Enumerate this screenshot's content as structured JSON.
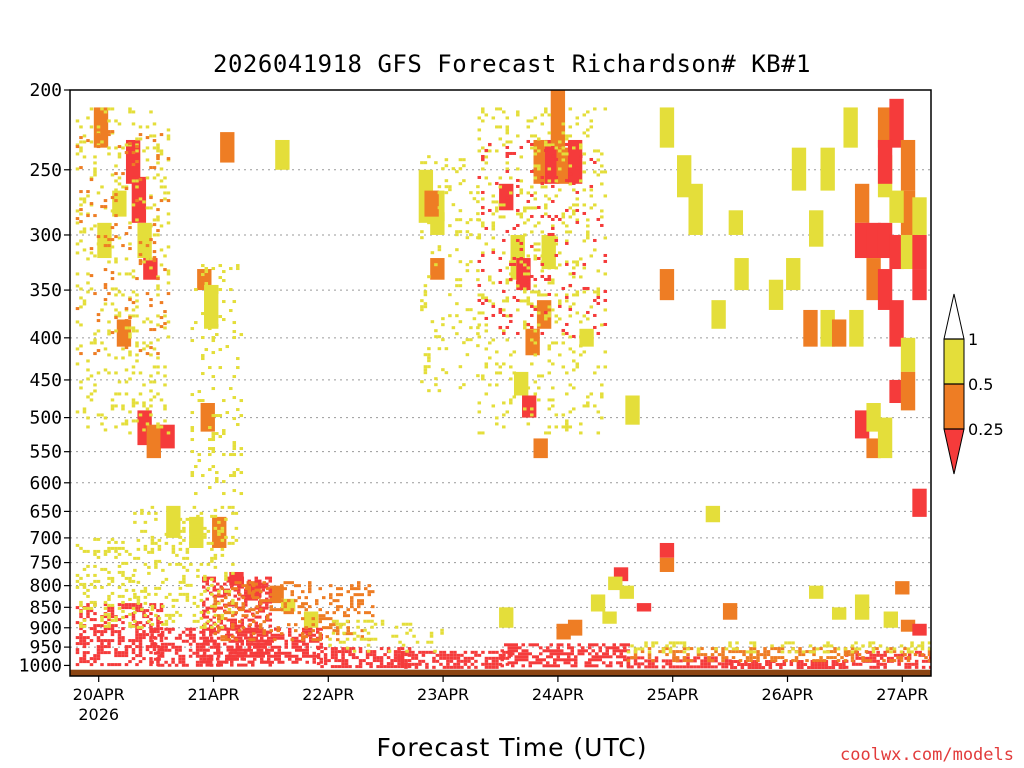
{
  "chart_data": {
    "type": "heatmap",
    "title": "2026041918 GFS Forecast Richardson# KB#1",
    "xlabel": "Forecast Time (UTC)",
    "ylabel": "",
    "x_ticks": [
      {
        "label": "20APR",
        "sublabel": "2026",
        "day": 20
      },
      {
        "label": "21APR",
        "sublabel": "",
        "day": 21
      },
      {
        "label": "22APR",
        "sublabel": "",
        "day": 22
      },
      {
        "label": "23APR",
        "sublabel": "",
        "day": 23
      },
      {
        "label": "24APR",
        "sublabel": "",
        "day": 24
      },
      {
        "label": "25APR",
        "sublabel": "",
        "day": 25
      },
      {
        "label": "26APR",
        "sublabel": "",
        "day": 26
      },
      {
        "label": "27APR",
        "sublabel": "",
        "day": 27
      }
    ],
    "xlim": [
      19.75,
      27.25
    ],
    "y_axis": "pressure (hPa), log scale, inverted",
    "y_ticks": [
      "200",
      "250",
      "300",
      "350",
      "400",
      "450",
      "500",
      "550",
      "600",
      "650",
      "700",
      "750",
      "800",
      "850",
      "900",
      "950",
      "1000"
    ],
    "ylim": [
      200,
      1030
    ],
    "grid": "dotted horizontal lines at pressure ticks",
    "legend": {
      "placement": "right",
      "type": "colorbar",
      "levels": [
        "1",
        "0.5",
        "0.25"
      ],
      "bins": [
        {
          "range": "> 1",
          "color": "#ffffff"
        },
        {
          "range": "0.5 - 1",
          "color": "#e4de3a"
        },
        {
          "range": "0.25 - 0.5",
          "color": "#ee7d24"
        },
        {
          "range": "< 0.25",
          "color": "#f53b3b"
        }
      ]
    },
    "colors": {
      "red": "#f53b3b",
      "orange": "#ee7d24",
      "yellow": "#e4de3a",
      "ground": "#8b4513"
    },
    "surface_layer": {
      "p_top": 1012,
      "p_bottom": 1030,
      "color": "#8b4513"
    },
    "cells": [
      {
        "day": 20.05,
        "p1": 290,
        "p2": 320,
        "c": "yellow"
      },
      {
        "day": 20.02,
        "p1": 210,
        "p2": 235,
        "c": "orange"
      },
      {
        "day": 20.18,
        "p1": 265,
        "p2": 285,
        "c": "yellow"
      },
      {
        "day": 20.3,
        "p1": 230,
        "p2": 260,
        "c": "red"
      },
      {
        "day": 20.35,
        "p1": 255,
        "p2": 290,
        "c": "red"
      },
      {
        "day": 20.4,
        "p1": 290,
        "p2": 320,
        "c": "yellow"
      },
      {
        "day": 20.45,
        "p1": 320,
        "p2": 340,
        "c": "red"
      },
      {
        "day": 20.22,
        "p1": 380,
        "p2": 410,
        "c": "orange"
      },
      {
        "day": 20.4,
        "p1": 490,
        "p2": 540,
        "c": "red"
      },
      {
        "day": 20.48,
        "p1": 510,
        "p2": 560,
        "c": "orange"
      },
      {
        "day": 20.6,
        "p1": 510,
        "p2": 545,
        "c": "red"
      },
      {
        "day": 20.65,
        "p1": 640,
        "p2": 700,
        "c": "yellow"
      },
      {
        "day": 20.85,
        "p1": 660,
        "p2": 720,
        "c": "yellow"
      },
      {
        "day": 20.92,
        "p1": 330,
        "p2": 350,
        "c": "orange"
      },
      {
        "day": 20.98,
        "p1": 345,
        "p2": 390,
        "c": "yellow"
      },
      {
        "day": 20.95,
        "p1": 480,
        "p2": 520,
        "c": "orange"
      },
      {
        "day": 21.05,
        "p1": 660,
        "p2": 720,
        "c": "orange"
      },
      {
        "day": 21.12,
        "p1": 225,
        "p2": 245,
        "c": "orange"
      },
      {
        "day": 21.2,
        "p1": 770,
        "p2": 800,
        "c": "red"
      },
      {
        "day": 21.35,
        "p1": 790,
        "p2": 830,
        "c": "orange"
      },
      {
        "day": 21.55,
        "p1": 800,
        "p2": 840,
        "c": "orange"
      },
      {
        "day": 21.65,
        "p1": 830,
        "p2": 860,
        "c": "yellow"
      },
      {
        "day": 21.85,
        "p1": 860,
        "p2": 900,
        "c": "yellow"
      },
      {
        "day": 21.6,
        "p1": 230,
        "p2": 250,
        "c": "yellow"
      },
      {
        "day": 22.85,
        "p1": 250,
        "p2": 290,
        "c": "yellow"
      },
      {
        "day": 22.95,
        "p1": 265,
        "p2": 300,
        "c": "yellow"
      },
      {
        "day": 22.9,
        "p1": 265,
        "p2": 285,
        "c": "orange"
      },
      {
        "day": 22.95,
        "p1": 320,
        "p2": 340,
        "c": "orange"
      },
      {
        "day": 23.55,
        "p1": 260,
        "p2": 280,
        "c": "red"
      },
      {
        "day": 23.65,
        "p1": 300,
        "p2": 340,
        "c": "yellow"
      },
      {
        "day": 23.7,
        "p1": 320,
        "p2": 350,
        "c": "red"
      },
      {
        "day": 23.85,
        "p1": 230,
        "p2": 260,
        "c": "orange"
      },
      {
        "day": 23.95,
        "p1": 230,
        "p2": 260,
        "c": "red"
      },
      {
        "day": 24.05,
        "p1": 235,
        "p2": 260,
        "c": "orange"
      },
      {
        "day": 24.15,
        "p1": 230,
        "p2": 260,
        "c": "red"
      },
      {
        "day": 24.0,
        "p1": 200,
        "p2": 235,
        "c": "orange"
      },
      {
        "day": 23.92,
        "p1": 300,
        "p2": 330,
        "c": "yellow"
      },
      {
        "day": 23.78,
        "p1": 390,
        "p2": 420,
        "c": "orange"
      },
      {
        "day": 23.88,
        "p1": 360,
        "p2": 390,
        "c": "orange"
      },
      {
        "day": 23.85,
        "p1": 530,
        "p2": 560,
        "c": "orange"
      },
      {
        "day": 23.75,
        "p1": 470,
        "p2": 500,
        "c": "red"
      },
      {
        "day": 23.68,
        "p1": 440,
        "p2": 470,
        "c": "yellow"
      },
      {
        "day": 23.55,
        "p1": 850,
        "p2": 900,
        "c": "yellow"
      },
      {
        "day": 24.15,
        "p1": 880,
        "p2": 920,
        "c": "orange"
      },
      {
        "day": 24.05,
        "p1": 890,
        "p2": 930,
        "c": "orange"
      },
      {
        "day": 24.35,
        "p1": 820,
        "p2": 860,
        "c": "yellow"
      },
      {
        "day": 24.55,
        "p1": 760,
        "p2": 790,
        "c": "red"
      },
      {
        "day": 24.5,
        "p1": 780,
        "p2": 810,
        "c": "yellow"
      },
      {
        "day": 24.45,
        "p1": 860,
        "p2": 890,
        "c": "yellow"
      },
      {
        "day": 24.75,
        "p1": 840,
        "p2": 860,
        "c": "red"
      },
      {
        "day": 24.6,
        "p1": 800,
        "p2": 830,
        "c": "yellow"
      },
      {
        "day": 24.25,
        "p1": 390,
        "p2": 410,
        "c": "yellow"
      },
      {
        "day": 24.65,
        "p1": 470,
        "p2": 510,
        "c": "yellow"
      },
      {
        "day": 24.95,
        "p1": 210,
        "p2": 235,
        "c": "yellow"
      },
      {
        "day": 25.1,
        "p1": 240,
        "p2": 270,
        "c": "yellow"
      },
      {
        "day": 25.2,
        "p1": 260,
        "p2": 300,
        "c": "yellow"
      },
      {
        "day": 24.95,
        "p1": 330,
        "p2": 360,
        "c": "orange"
      },
      {
        "day": 24.95,
        "p1": 710,
        "p2": 740,
        "c": "red"
      },
      {
        "day": 24.95,
        "p1": 740,
        "p2": 770,
        "c": "orange"
      },
      {
        "day": 25.35,
        "p1": 640,
        "p2": 670,
        "c": "yellow"
      },
      {
        "day": 25.5,
        "p1": 840,
        "p2": 880,
        "c": "orange"
      },
      {
        "day": 25.55,
        "p1": 280,
        "p2": 300,
        "c": "yellow"
      },
      {
        "day": 25.6,
        "p1": 320,
        "p2": 350,
        "c": "yellow"
      },
      {
        "day": 25.4,
        "p1": 360,
        "p2": 390,
        "c": "yellow"
      },
      {
        "day": 25.9,
        "p1": 340,
        "p2": 370,
        "c": "yellow"
      },
      {
        "day": 26.05,
        "p1": 320,
        "p2": 350,
        "c": "yellow"
      },
      {
        "day": 26.1,
        "p1": 235,
        "p2": 265,
        "c": "yellow"
      },
      {
        "day": 26.25,
        "p1": 280,
        "p2": 310,
        "c": "yellow"
      },
      {
        "day": 26.35,
        "p1": 235,
        "p2": 265,
        "c": "yellow"
      },
      {
        "day": 26.55,
        "p1": 210,
        "p2": 235,
        "c": "yellow"
      },
      {
        "day": 26.2,
        "p1": 370,
        "p2": 410,
        "c": "orange"
      },
      {
        "day": 26.35,
        "p1": 370,
        "p2": 410,
        "c": "yellow"
      },
      {
        "day": 26.45,
        "p1": 380,
        "p2": 410,
        "c": "orange"
      },
      {
        "day": 26.6,
        "p1": 370,
        "p2": 410,
        "c": "yellow"
      },
      {
        "day": 26.65,
        "p1": 260,
        "p2": 290,
        "c": "orange"
      },
      {
        "day": 26.65,
        "p1": 290,
        "p2": 320,
        "c": "red"
      },
      {
        "day": 26.75,
        "p1": 290,
        "p2": 320,
        "c": "red"
      },
      {
        "day": 26.85,
        "p1": 240,
        "p2": 270,
        "c": "yellow"
      },
      {
        "day": 26.85,
        "p1": 290,
        "p2": 320,
        "c": "red"
      },
      {
        "day": 26.75,
        "p1": 320,
        "p2": 360,
        "c": "orange"
      },
      {
        "day": 26.85,
        "p1": 330,
        "p2": 370,
        "c": "red"
      },
      {
        "day": 26.95,
        "p1": 300,
        "p2": 330,
        "c": "red"
      },
      {
        "day": 27.05,
        "p1": 300,
        "p2": 330,
        "c": "yellow"
      },
      {
        "day": 27.15,
        "p1": 300,
        "p2": 330,
        "c": "red"
      },
      {
        "day": 26.85,
        "p1": 210,
        "p2": 235,
        "c": "orange"
      },
      {
        "day": 26.95,
        "p1": 205,
        "p2": 235,
        "c": "red"
      },
      {
        "day": 26.85,
        "p1": 230,
        "p2": 260,
        "c": "red"
      },
      {
        "day": 27.05,
        "p1": 230,
        "p2": 265,
        "c": "orange"
      },
      {
        "day": 27.05,
        "p1": 265,
        "p2": 300,
        "c": "orange"
      },
      {
        "day": 26.95,
        "p1": 265,
        "p2": 290,
        "c": "yellow"
      },
      {
        "day": 27.15,
        "p1": 270,
        "p2": 300,
        "c": "yellow"
      },
      {
        "day": 26.95,
        "p1": 360,
        "p2": 410,
        "c": "red"
      },
      {
        "day": 27.05,
        "p1": 400,
        "p2": 440,
        "c": "yellow"
      },
      {
        "day": 26.95,
        "p1": 450,
        "p2": 480,
        "c": "red"
      },
      {
        "day": 27.05,
        "p1": 440,
        "p2": 490,
        "c": "orange"
      },
      {
        "day": 26.65,
        "p1": 490,
        "p2": 530,
        "c": "red"
      },
      {
        "day": 26.75,
        "p1": 480,
        "p2": 520,
        "c": "yellow"
      },
      {
        "day": 26.75,
        "p1": 530,
        "p2": 560,
        "c": "orange"
      },
      {
        "day": 26.85,
        "p1": 500,
        "p2": 560,
        "c": "yellow"
      },
      {
        "day": 27.15,
        "p1": 610,
        "p2": 660,
        "c": "red"
      },
      {
        "day": 27.15,
        "p1": 330,
        "p2": 360,
        "c": "red"
      },
      {
        "day": 27.0,
        "p1": 790,
        "p2": 820,
        "c": "orange"
      },
      {
        "day": 27.05,
        "p1": 880,
        "p2": 910,
        "c": "orange"
      },
      {
        "day": 27.15,
        "p1": 890,
        "p2": 920,
        "c": "red"
      },
      {
        "day": 26.65,
        "p1": 820,
        "p2": 880,
        "c": "yellow"
      },
      {
        "day": 26.9,
        "p1": 860,
        "p2": 900,
        "c": "yellow"
      },
      {
        "day": 26.45,
        "p1": 850,
        "p2": 880,
        "c": "yellow"
      },
      {
        "day": 26.25,
        "p1": 800,
        "p2": 830,
        "c": "yellow"
      }
    ],
    "bands": [
      {
        "d1": 19.8,
        "d2": 20.55,
        "p1": 840,
        "p2": 1000,
        "c": "red",
        "density": 0.45
      },
      {
        "d1": 20.45,
        "d2": 21.05,
        "p1": 900,
        "p2": 1000,
        "c": "red",
        "density": 0.5
      },
      {
        "d1": 20.9,
        "d2": 21.5,
        "p1": 780,
        "p2": 1000,
        "c": "red",
        "density": 0.45
      },
      {
        "d1": 21.1,
        "d2": 21.95,
        "p1": 900,
        "p2": 990,
        "c": "red",
        "density": 0.55
      },
      {
        "d1": 21.9,
        "d2": 22.7,
        "p1": 950,
        "p2": 1000,
        "c": "red",
        "density": 0.55
      },
      {
        "d1": 22.6,
        "d2": 23.6,
        "p1": 960,
        "p2": 1005,
        "c": "red",
        "density": 0.6
      },
      {
        "d1": 23.5,
        "d2": 24.6,
        "p1": 940,
        "p2": 1005,
        "c": "red",
        "density": 0.6
      },
      {
        "d1": 24.6,
        "d2": 25.5,
        "p1": 975,
        "p2": 1005,
        "c": "red",
        "density": 0.7
      },
      {
        "d1": 25.5,
        "d2": 26.5,
        "p1": 985,
        "p2": 1005,
        "c": "red",
        "density": 0.7
      },
      {
        "d1": 26.5,
        "d2": 27.25,
        "p1": 960,
        "p2": 1005,
        "c": "red",
        "density": 0.55
      },
      {
        "d1": 19.8,
        "d2": 20.3,
        "p1": 700,
        "p2": 900,
        "c": "yellow",
        "density": 0.2
      },
      {
        "d1": 20.3,
        "d2": 21.2,
        "p1": 640,
        "p2": 900,
        "c": "yellow",
        "density": 0.18
      },
      {
        "d1": 21.0,
        "d2": 22.4,
        "p1": 790,
        "p2": 930,
        "c": "orange",
        "density": 0.25
      },
      {
        "d1": 22.0,
        "d2": 23.0,
        "p1": 880,
        "p2": 960,
        "c": "yellow",
        "density": 0.15
      },
      {
        "d1": 24.6,
        "d2": 27.25,
        "p1": 950,
        "p2": 985,
        "c": "orange",
        "density": 0.35
      },
      {
        "d1": 24.6,
        "d2": 27.25,
        "p1": 935,
        "p2": 965,
        "c": "yellow",
        "density": 0.25
      },
      {
        "d1": 19.8,
        "d2": 20.6,
        "p1": 210,
        "p2": 520,
        "c": "yellow",
        "density": 0.12
      },
      {
        "d1": 19.8,
        "d2": 20.6,
        "p1": 220,
        "p2": 420,
        "c": "orange",
        "density": 0.05
      },
      {
        "d1": 20.8,
        "d2": 21.25,
        "p1": 320,
        "p2": 620,
        "c": "yellow",
        "density": 0.1
      },
      {
        "d1": 22.8,
        "d2": 23.3,
        "p1": 240,
        "p2": 470,
        "c": "yellow",
        "density": 0.08
      },
      {
        "d1": 23.3,
        "d2": 24.4,
        "p1": 210,
        "p2": 520,
        "c": "yellow",
        "density": 0.12
      },
      {
        "d1": 23.3,
        "d2": 24.4,
        "p1": 230,
        "p2": 400,
        "c": "red",
        "density": 0.05
      }
    ]
  },
  "credit": "coolwx.com/models"
}
